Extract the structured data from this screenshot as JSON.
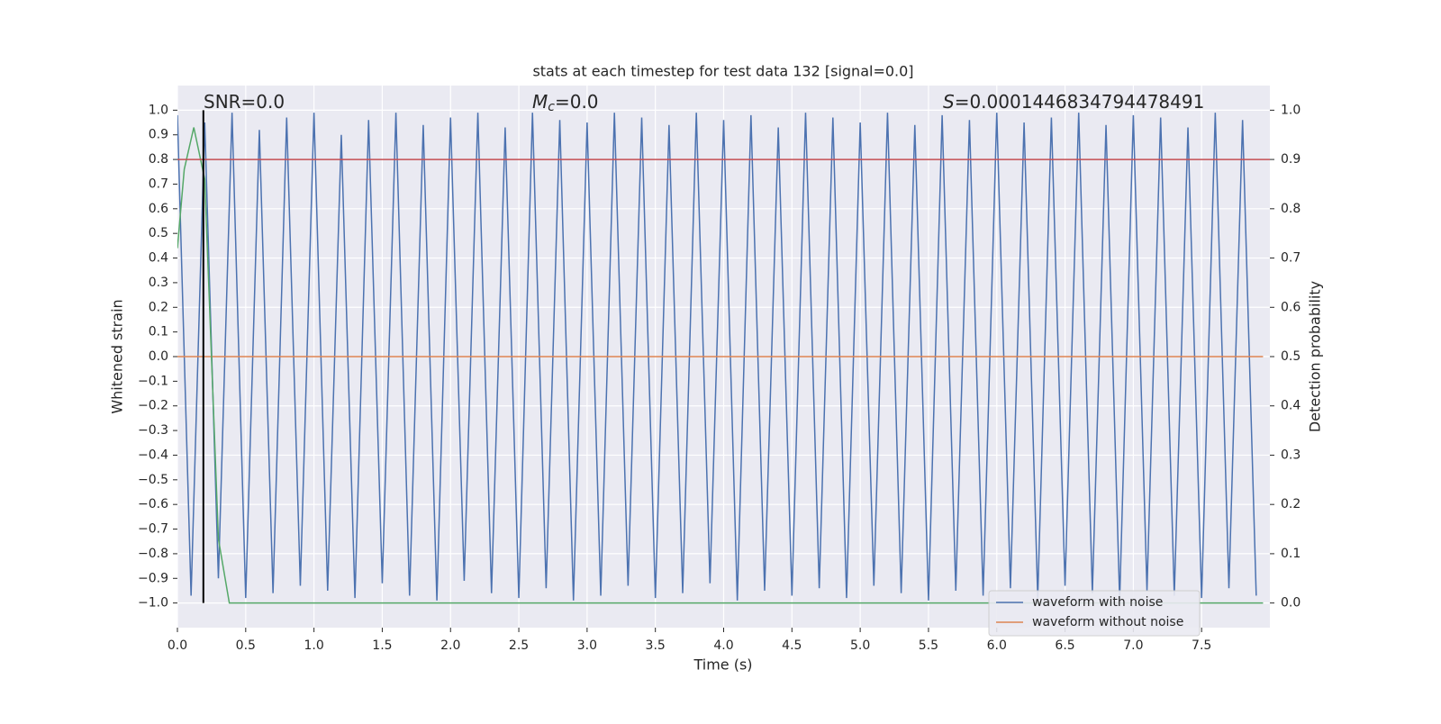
{
  "chart_data": {
    "type": "line",
    "title": "stats at each timestep for test data 132 [signal=0.0]",
    "xlabel": "Time (s)",
    "ylabel": "Whitened strain",
    "y2label": "Detection probability",
    "annotations": [
      {
        "text": "SNR=0.0"
      },
      {
        "symbol": "M",
        "subscript": "c",
        "text": "=0.0"
      },
      {
        "symbol": "S",
        "text": "=0.0001446834794478491"
      }
    ],
    "xlim": [
      0,
      8
    ],
    "ylim": [
      -1.1,
      1.1
    ],
    "y2lim": [
      -0.05,
      1.05
    ],
    "xticks": [
      {
        "value": 0,
        "label": "0.0"
      },
      0.5,
      {
        "value": 1,
        "label": "1.0"
      },
      1.5,
      {
        "value": 2,
        "label": "2.0"
      },
      2.5,
      {
        "value": 3,
        "label": "3.0"
      },
      3.5,
      {
        "value": 4,
        "label": "4.0"
      },
      4.5,
      {
        "value": 5,
        "label": "5.0"
      },
      5.5,
      {
        "value": 6,
        "label": "6.0"
      },
      6.5,
      {
        "value": 7,
        "label": "7.0"
      },
      7.5
    ],
    "yticks": [
      {
        "value": 1,
        "label": "1.0"
      },
      0.9,
      0.8,
      0.7,
      0.6,
      0.5,
      0.4,
      0.3,
      0.2,
      0.1,
      {
        "value": 0,
        "label": "0.0"
      },
      {
        "value": -0.1,
        "label": "−0.1"
      },
      {
        "value": -0.2,
        "label": "−0.2"
      },
      {
        "value": -0.3,
        "label": "−0.3"
      },
      {
        "value": -0.4,
        "label": "−0.4"
      },
      {
        "value": -0.5,
        "label": "−0.5"
      },
      {
        "value": -0.6,
        "label": "−0.6"
      },
      {
        "value": -0.7,
        "label": "−0.7"
      },
      {
        "value": -0.8,
        "label": "−0.8"
      },
      {
        "value": -0.9,
        "label": "−0.9"
      },
      {
        "value": -1,
        "label": "−1.0"
      }
    ],
    "y2ticks": [
      {
        "value": 1,
        "label": "1.0"
      },
      0.9,
      0.8,
      0.7,
      0.6,
      0.5,
      0.4,
      0.3,
      0.2,
      0.1,
      {
        "value": 0,
        "label": "0.0"
      }
    ],
    "grid": true,
    "legend": "lower right",
    "series": [
      {
        "name": "waveform with noise",
        "color": "#4c72b0",
        "x": [
          0,
          0.1,
          0.2,
          0.3,
          0.4,
          0.5,
          0.6,
          0.7,
          0.8,
          0.9,
          1,
          1.1,
          1.2,
          1.3,
          1.4,
          1.5,
          1.6,
          1.7,
          1.8,
          1.9,
          2,
          2.1,
          2.2,
          2.3,
          2.4,
          2.5,
          2.6,
          2.7,
          2.8,
          2.9,
          3,
          3.1,
          3.2,
          3.3,
          3.4,
          3.5,
          3.6,
          3.7,
          3.8,
          3.9,
          4,
          4.1,
          4.2,
          4.3,
          4.4,
          4.5,
          4.6,
          4.7,
          4.8,
          4.9,
          5,
          5.1,
          5.2,
          5.3,
          5.4,
          5.5,
          5.6,
          5.7,
          5.8,
          5.9,
          6,
          6.1,
          6.2,
          6.3,
          6.4,
          6.5,
          6.6,
          6.7,
          6.8,
          6.9,
          7,
          7.1,
          7.2,
          7.3,
          7.4,
          7.5,
          7.6,
          7.7,
          7.8,
          7.9
        ],
        "values": [
          0.98,
          -0.97,
          0.95,
          -0.9,
          0.99,
          -0.98,
          0.92,
          -0.96,
          0.97,
          -0.93,
          0.99,
          -0.95,
          0.9,
          -0.98,
          0.96,
          -0.92,
          0.99,
          -0.97,
          0.94,
          -0.99,
          0.97,
          -0.91,
          0.99,
          -0.96,
          0.93,
          -0.98,
          0.99,
          -0.94,
          0.96,
          -0.99,
          0.95,
          -0.97,
          0.99,
          -0.93,
          0.97,
          -0.98,
          0.94,
          -0.96,
          0.99,
          -0.92,
          0.96,
          -0.99,
          0.98,
          -0.95,
          0.93,
          -0.97,
          0.99,
          -0.94,
          0.97,
          -0.98,
          0.95,
          -0.93,
          0.99,
          -0.96,
          0.94,
          -0.99,
          0.98,
          -0.95,
          0.96,
          -0.97,
          0.99,
          -0.94,
          0.95,
          -0.98,
          0.97,
          -0.93,
          0.99,
          -0.96,
          0.94,
          -0.99,
          0.98,
          -0.95,
          0.97,
          -0.97,
          0.93,
          -0.98,
          0.99,
          -0.94,
          0.96,
          -0.97
        ]
      },
      {
        "name": "waveform without noise",
        "color": "#dd8452",
        "x": [
          0,
          7.95
        ],
        "values": [
          0,
          0
        ]
      }
    ],
    "probability": {
      "color": "#55a868",
      "axis": "y2",
      "x": [
        0,
        0.05,
        0.12,
        0.2,
        0.3,
        0.38,
        7.95
      ],
      "values": [
        0.72,
        0.88,
        0.965,
        0.86,
        0.13,
        0,
        0
      ]
    },
    "threshold": {
      "value": 0.9,
      "axis": "y2",
      "color": "#c44e52"
    },
    "marker": {
      "x": 0.19,
      "ymin": -1,
      "ymax": 1,
      "color": "#000000"
    }
  }
}
